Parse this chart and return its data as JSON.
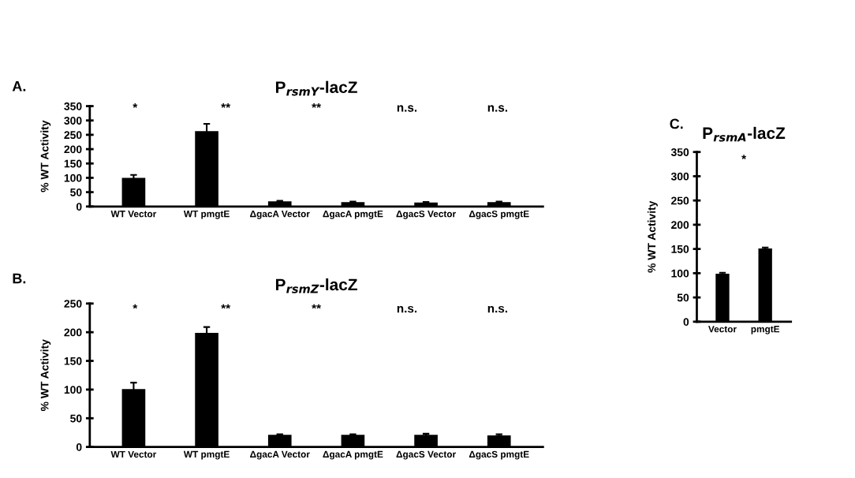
{
  "chart_data": [
    {
      "type": "bar",
      "title": "P$_{rsmY}$-lacZ",
      "ylabel": "% WT Activity",
      "categories": [
        "WT Vector",
        "WT pmgtE",
        "ΔgacA Vector",
        "ΔgacA pmgtE",
        "ΔgacS Vector",
        "ΔgacS pmgtE"
      ],
      "series": [
        {
          "color": "#000000",
          "values": [
            100,
            263,
            18,
            15,
            14,
            15
          ],
          "errors": [
            10,
            25,
            2,
            2,
            2,
            2
          ]
        }
      ],
      "ylim": [
        0,
        350
      ],
      "yticks": [
        0,
        50,
        100,
        150,
        200,
        250,
        300,
        350
      ],
      "grid": false,
      "legend": false,
      "annotations": [
        "A.",
        "*",
        "**",
        "**",
        "n.s.",
        "n.s."
      ]
    },
    {
      "type": "bar",
      "title": "P$_{rsmZ}$-lacZ",
      "ylabel": "% WT Activity",
      "categories": [
        "WT Vector",
        "WT pmgtE",
        "ΔgacA Vector",
        "ΔgacA pmgtE",
        "ΔgacS Vector",
        "ΔgacS pmgtE"
      ],
      "series": [
        {
          "color": "#000000",
          "values": [
            101,
            199,
            21,
            21,
            21,
            20
          ],
          "errors": [
            11,
            10,
            1,
            1,
            2,
            2
          ]
        }
      ],
      "ylim": [
        0,
        250
      ],
      "yticks": [
        0,
        50,
        100,
        150,
        200,
        250
      ],
      "grid": false,
      "legend": false,
      "annotations": [
        "B.",
        "*",
        "**",
        "**",
        "n.s.",
        "n.s."
      ]
    },
    {
      "type": "bar",
      "title": "P$_{rsmA}$-lacZ",
      "ylabel": "% WT Activity",
      "categories": [
        "Vector",
        "pmgtE"
      ],
      "series": [
        {
          "color": "#000000",
          "values": [
            99,
            151
          ],
          "errors": [
            2,
            2
          ]
        }
      ],
      "ylim": [
        0,
        350
      ],
      "yticks": [
        0,
        50,
        100,
        150,
        200,
        250,
        300,
        350
      ],
      "grid": false,
      "legend": false,
      "annotations": [
        "C.",
        "*"
      ]
    }
  ]
}
